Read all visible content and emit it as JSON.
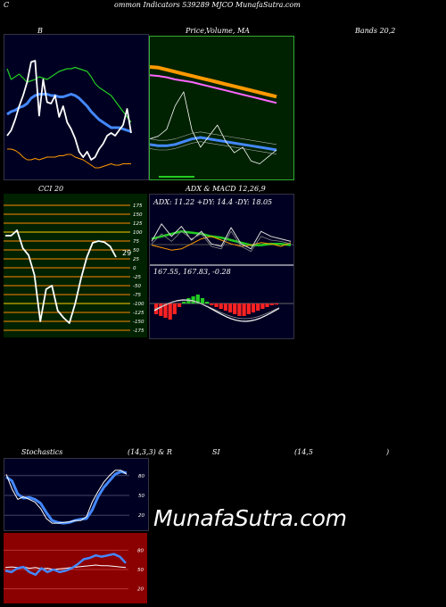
{
  "header": {
    "corner_letter": "C",
    "title": "ommon  Indicators 539289 MJCO MunafaSutra.com"
  },
  "labels": {
    "b_panel": "B",
    "price_panel": "Price,",
    "price_overlap": "Volume, MA",
    "bands": "Bands 20,2",
    "cci": "CCI 20",
    "adx_macd": "ADX  & MACD 12,26,9",
    "adx_values": "ADX: 11.22  +DY: 14.4  -DY: 18.05",
    "macd_values": "167.55,  167.83,  -0.28",
    "stoch_title": "Stochastics",
    "stoch_params": "(14,3,3) & R",
    "si_title": "SI",
    "si_params": "(14,5",
    "si_close": ")",
    "cci_value": "29",
    "watermark": "MunafaSutra.com"
  },
  "colors": {
    "navy_bg": "#000022",
    "price_bg": "#002200",
    "cci_bg": "#002200",
    "rsi_bg": "#8b0000",
    "grid_orange": "#ff8800",
    "line_blue": "#4488ff",
    "line_green": "#22cc22",
    "line_orange": "#ff9900",
    "line_white": "#ffffff",
    "macd_red": "#ff2222"
  },
  "chart_data": [
    {
      "type": "line",
      "panel": "bollinger",
      "series": [
        {
          "values": [
            80,
            72,
            74,
            76,
            73,
            70,
            71,
            72,
            74,
            73,
            72,
            74,
            76,
            78,
            79,
            80,
            80,
            81,
            80,
            79,
            78,
            74,
            69,
            66,
            64,
            62,
            60,
            56,
            52,
            48,
            44,
            40
          ]
        },
        {
          "values": [
            46,
            48,
            49,
            51,
            52,
            54,
            58,
            60,
            61,
            61,
            61,
            60,
            60,
            59,
            59,
            60,
            61,
            60,
            58,
            55,
            52,
            48,
            45,
            42,
            40,
            38,
            36,
            36,
            36,
            35,
            34,
            33
          ]
        },
        {
          "values": [
            20,
            20,
            19,
            17,
            14,
            12,
            12,
            13,
            12,
            13,
            14,
            14,
            14,
            15,
            15,
            16,
            16,
            14,
            13,
            12,
            10,
            8,
            6,
            6,
            7,
            8,
            9,
            8,
            8,
            9,
            9,
            9
          ]
        },
        {
          "values": [
            30,
            34,
            42,
            52,
            60,
            70,
            85,
            86,
            45,
            72,
            55,
            54,
            60,
            44,
            52,
            40,
            35,
            28,
            18,
            14,
            18,
            12,
            14,
            20,
            24,
            30,
            32,
            30,
            34,
            38,
            50,
            32
          ]
        }
      ]
    },
    {
      "type": "line",
      "panel": "price_ma",
      "series": [
        {
          "values": [
            80,
            79.5,
            78,
            76.5,
            75,
            73.5,
            72,
            70.5,
            69,
            67.5,
            66,
            64.5,
            63,
            61.5,
            60,
            58.5
          ]
        },
        {
          "values": [
            74,
            73.5,
            72.5,
            71,
            70,
            69,
            67.5,
            66,
            64.5,
            63,
            61.5,
            60,
            58.5,
            57,
            55.5,
            54
          ]
        },
        {
          "values": [
            24,
            23,
            23,
            24,
            26,
            28,
            29,
            28,
            27,
            26,
            25,
            24,
            23,
            22,
            21,
            20
          ]
        },
        {
          "values": [
            28,
            30,
            35,
            52,
            62,
            34,
            22,
            30,
            38,
            26,
            18,
            22,
            12,
            10,
            15,
            20
          ]
        }
      ]
    },
    {
      "type": "line",
      "panel": "cci",
      "ylim": [
        -175,
        175
      ],
      "tick_labels": [
        "175",
        "150",
        "125",
        "100",
        "75",
        "50",
        "25",
        "0",
        "-25",
        "-50",
        "-75",
        "-100",
        "-125",
        "-150",
        "-175"
      ],
      "series": [
        {
          "values": [
            90,
            90,
            105,
            55,
            35,
            -20,
            -150,
            -60,
            -50,
            -120,
            -140,
            -155,
            -100,
            -30,
            30,
            70,
            75,
            72,
            60,
            30
          ]
        }
      ]
    },
    {
      "type": "line",
      "panel": "adx",
      "series": [
        {
          "values": [
            16,
            18,
            20,
            22,
            21,
            20,
            18,
            17,
            15,
            13,
            11,
            11,
            12,
            12,
            11
          ]
        },
        {
          "values": [
            11,
            9,
            7,
            8,
            12,
            16,
            18,
            15,
            12,
            10,
            11,
            13,
            12,
            10,
            13
          ]
        },
        {
          "values": [
            14,
            28,
            18,
            26,
            15,
            22,
            12,
            10,
            25,
            12,
            8,
            22,
            18,
            16,
            14
          ]
        },
        {
          "values": [
            12,
            20,
            14,
            22,
            16,
            20,
            10,
            8,
            22,
            10,
            6,
            18,
            15,
            14,
            12
          ]
        }
      ]
    },
    {
      "type": "bar",
      "panel": "macd",
      "series": [
        {
          "values": [
            -3,
            -3.5,
            -4,
            -4.5,
            -3,
            -1,
            0.5,
            1.5,
            2,
            2.5,
            1.5,
            0.5,
            -0.5,
            -1,
            -1.5,
            -2,
            -2.5,
            -3,
            -3.5,
            -3.5,
            -3,
            -2.5,
            -2,
            -1.5,
            -1,
            -0.5,
            -0.3
          ]
        }
      ]
    },
    {
      "type": "line",
      "panel": "stochastics",
      "tick_labels": [
        "80",
        "50",
        "20"
      ],
      "series": [
        {
          "values": [
            78,
            72,
            52,
            46,
            47,
            44,
            38,
            24,
            12,
            9,
            8,
            9,
            12,
            14,
            15,
            28,
            48,
            62,
            72,
            82,
            86,
            84
          ]
        },
        {
          "values": [
            82,
            60,
            44,
            48,
            44,
            40,
            30,
            15,
            8,
            8,
            9,
            10,
            12,
            12,
            18,
            40,
            56,
            70,
            80,
            88,
            88,
            82
          ]
        }
      ]
    },
    {
      "type": "line",
      "panel": "rsi",
      "tick_labels": [
        "80",
        "50",
        "20"
      ],
      "series": [
        {
          "values": [
            53,
            54,
            53,
            54,
            52,
            53,
            51,
            52,
            50,
            51,
            52,
            53,
            54,
            55,
            56,
            57,
            56,
            56,
            55,
            54,
            53
          ]
        },
        {
          "values": [
            48,
            46,
            52,
            54,
            46,
            42,
            52,
            46,
            50,
            46,
            48,
            52,
            58,
            66,
            68,
            72,
            70,
            72,
            74,
            70,
            60
          ]
        }
      ]
    }
  ]
}
